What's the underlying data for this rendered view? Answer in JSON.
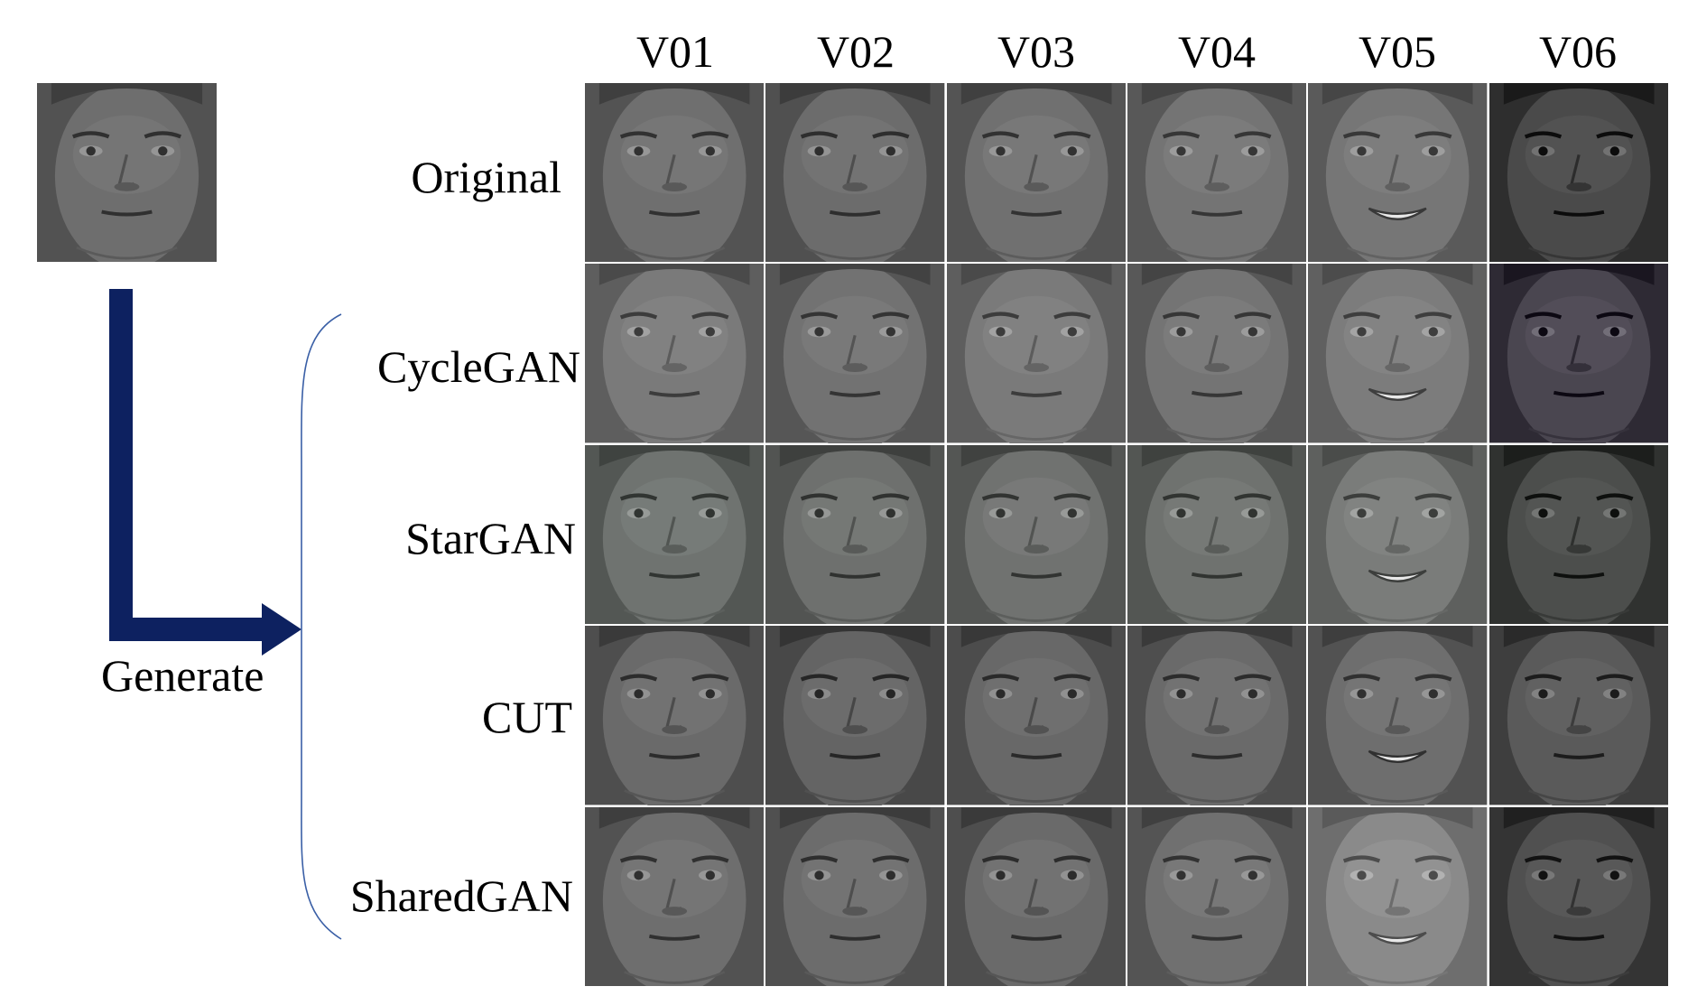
{
  "columns": [
    "V01",
    "V02",
    "V03",
    "V04",
    "V05",
    "V06"
  ],
  "rows": [
    "Original",
    "CycleGAN",
    "StarGAN",
    "CUT",
    "SharedGAN"
  ],
  "generate_label": "Generate",
  "colors": {
    "arrow": "#0d2160",
    "brace": "#3a5fa6"
  },
  "faces": {
    "rows": [
      {
        "tones": [
          "#6f6f6f",
          "#6c6c6c",
          "#707070",
          "#747474",
          "#767676",
          "#4a4a4a"
        ],
        "smile": [
          false,
          false,
          false,
          false,
          true,
          false
        ]
      },
      {
        "tones": [
          "#7a7a7a",
          "#727272",
          "#7a7a7a",
          "#747474",
          "#7c7c7c",
          "#4a4650"
        ],
        "smile": [
          false,
          false,
          false,
          false,
          true,
          false
        ]
      },
      {
        "tones": [
          "#6f7370",
          "#6e706e",
          "#707270",
          "#6f726f",
          "#7a7c7a",
          "#4c4e4c"
        ],
        "smile": [
          false,
          false,
          false,
          false,
          true,
          false
        ]
      },
      {
        "tones": [
          "#6a6a6a",
          "#646464",
          "#686868",
          "#6a6a6a",
          "#6e6e6e",
          "#5a5a5a"
        ],
        "smile": [
          false,
          false,
          false,
          false,
          true,
          false
        ]
      },
      {
        "tones": [
          "#6e6e6e",
          "#6c6c6c",
          "#6a6a6a",
          "#707070",
          "#8a8a8a",
          "#505050"
        ],
        "smile": [
          false,
          false,
          false,
          false,
          true,
          false
        ]
      }
    ],
    "source_tone": "#6e6e6e"
  }
}
